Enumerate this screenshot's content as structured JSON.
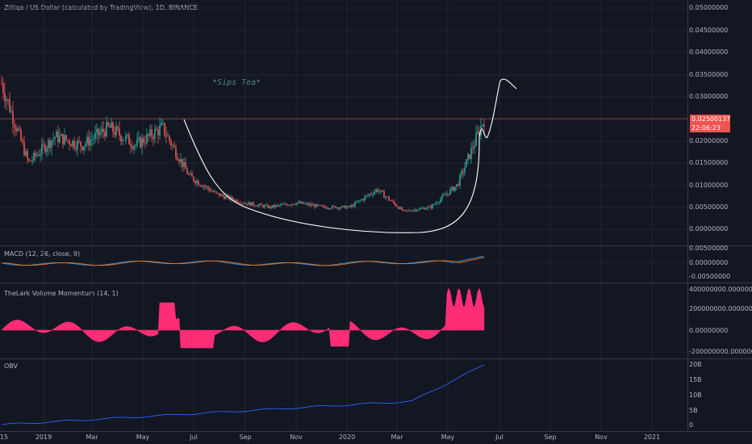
{
  "header": {
    "symbol_title": "Zilliqa / US Dollar (calculated by TradingView), 1D, BINANCE"
  },
  "annotation": {
    "text": "*Sips Tea*"
  },
  "price_scale": {
    "ticks": [
      "0.05000000",
      "0.04500000",
      "0.04000000",
      "0.03500000",
      "0.03000000",
      "0.02000000",
      "0.01500000",
      "0.01000000",
      "0.00500000",
      "0.00000000"
    ],
    "last_price": "0.02500137",
    "countdown": "22:06:23"
  },
  "panes": {
    "macd": {
      "label": "MACD (12, 26, close, 9)",
      "ticks": [
        "0.00500000",
        "0.00000000",
        "-0.00500000"
      ]
    },
    "volume_momentum": {
      "label": "TheLark Volume Momentum (14, 1)",
      "ticks": [
        "400000000.00000000",
        "200000000.00000000",
        "0.00000000",
        "-200000000.00000000"
      ]
    },
    "obv": {
      "label": "OBV",
      "ticks": [
        "20B",
        "15B",
        "10B",
        "5B",
        "0"
      ]
    }
  },
  "time_axis": {
    "ticks": [
      "15",
      "2019",
      "Mar",
      "May",
      "Jul",
      "Sep",
      "Nov",
      "2020",
      "Mar",
      "May",
      "Jul",
      "Sep",
      "Nov",
      "2021"
    ]
  },
  "colors": {
    "background": "#131722",
    "up": "#26a69a",
    "down": "#ef5350",
    "momentum": "#ff2d75",
    "obv": "#2962ff",
    "macd": "#2196f3",
    "signal": "#ff6d00"
  },
  "chart_data": [
    {
      "type": "line",
      "title": "Zilliqa / US Dollar (calculated by TradingView), 1D, BINANCE",
      "x": [
        "2018-12-15",
        "2019-01",
        "2019-02",
        "2019-03",
        "2019-04",
        "2019-05",
        "2019-06",
        "2019-07",
        "2019-08",
        "2019-09",
        "2019-10",
        "2019-11",
        "2019-12",
        "2020-01",
        "2020-02",
        "2020-03",
        "2020-04",
        "2020-05",
        "2020-06"
      ],
      "values": [
        0.033,
        0.015,
        0.021,
        0.019,
        0.023,
        0.019,
        0.023,
        0.012,
        0.008,
        0.006,
        0.005,
        0.006,
        0.005,
        0.005,
        0.009,
        0.004,
        0.005,
        0.01,
        0.025
      ],
      "ylim": [
        -0.002,
        0.052
      ]
    },
    {
      "type": "line",
      "title": "MACD (12, 26, close, 9)",
      "ylim": [
        -0.006,
        0.006
      ]
    },
    {
      "type": "area",
      "title": "TheLark Volume Momentum (14, 1)",
      "ylim": [
        -250000000,
        450000000
      ]
    },
    {
      "type": "line",
      "title": "OBV",
      "ylim": [
        0,
        21000000000
      ]
    }
  ]
}
